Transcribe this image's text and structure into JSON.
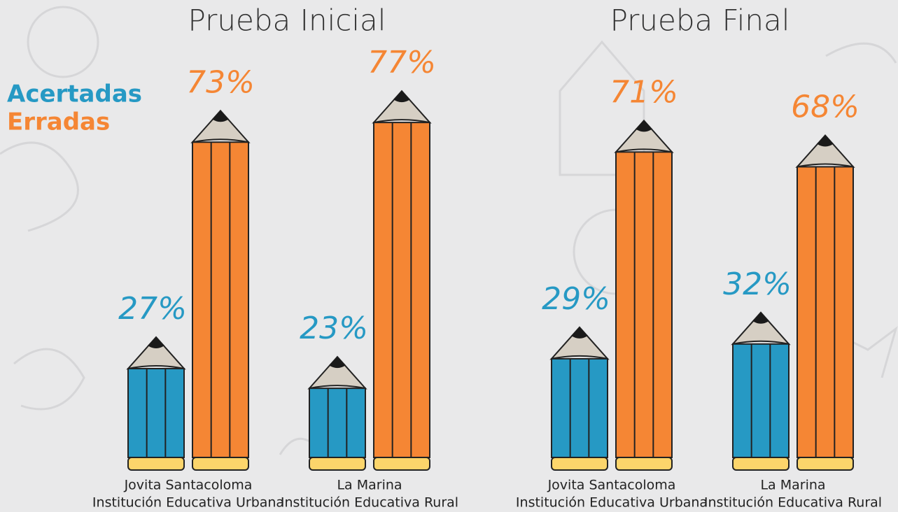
{
  "legend": {
    "items": [
      {
        "name": "Acertadas",
        "color": "#2699c4"
      },
      {
        "name": "Erradas",
        "color": "#f58634"
      }
    ]
  },
  "chart_data": [
    {
      "type": "bar",
      "title": "Prueba Inicial",
      "categories": [
        "Jovita Santacoloma",
        "La Marina"
      ],
      "category_subtitles": [
        "Institución Educativa Urbana",
        "Institución Educativa Rural"
      ],
      "ylim": [
        0,
        80
      ],
      "series": [
        {
          "color": "#2699c4",
          "values": [
            27,
            23
          ],
          "value_labels": [
            "27%",
            "23%"
          ]
        },
        {
          "color": "#f58634",
          "values": [
            73,
            77
          ],
          "value_labels": [
            "73%",
            "77%"
          ]
        }
      ]
    },
    {
      "type": "bar",
      "title": "Prueba Final",
      "categories": [
        "Jovita Santacoloma",
        "La Marina"
      ],
      "category_subtitles": [
        "Institución Educativa Urbana",
        "Institución Educativa Rural"
      ],
      "ylim": [
        0,
        80
      ],
      "series": [
        {
          "color": "#2699c4",
          "values": [
            29,
            32
          ],
          "value_labels": [
            "29%",
            "32%"
          ]
        },
        {
          "color": "#f58634",
          "values": [
            71,
            68
          ],
          "value_labels": [
            "71%",
            "68%"
          ]
        }
      ]
    }
  ]
}
